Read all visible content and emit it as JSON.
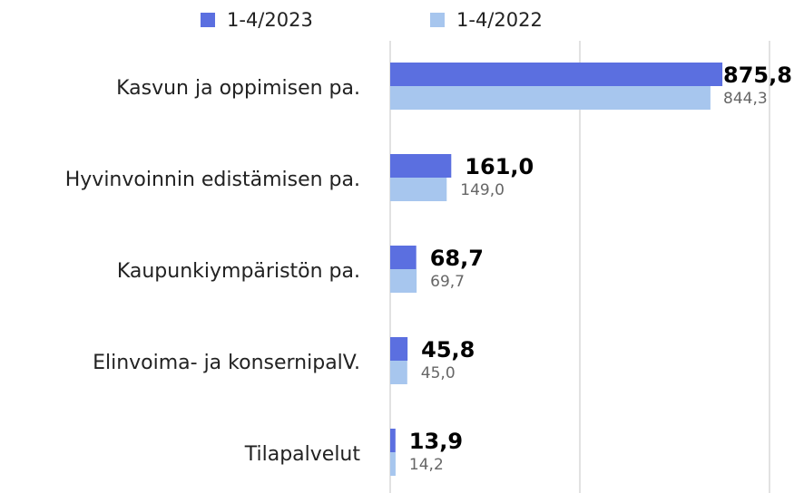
{
  "chart_data": {
    "type": "hbar",
    "categories": [
      "Kasvun ja oppimisen pa.",
      "Hyvinvoinnin edistämisen pa.",
      "Kaupunkiympäristön pa.",
      "Elinvoima- ja konsernipalV.",
      "Tilapalvelut"
    ],
    "series": [
      {
        "name": "1-4/2023",
        "color": "#5b6fe0",
        "values": [
          875.8,
          161.0,
          68.7,
          45.8,
          13.9
        ],
        "value_labels": [
          "875,8",
          "161,0",
          "68,7",
          "45,8",
          "13,9"
        ]
      },
      {
        "name": "1-4/2022",
        "color": "#a7c6ee",
        "values": [
          844.3,
          149.0,
          69.7,
          45.0,
          14.2
        ],
        "value_labels": [
          "844,3",
          "149,0",
          "69,7",
          "45,0",
          "14,2"
        ]
      }
    ],
    "xlim": [
      0,
      1000
    ],
    "xticks": [
      0,
      500,
      1000
    ],
    "grid": true,
    "legend": "top"
  }
}
